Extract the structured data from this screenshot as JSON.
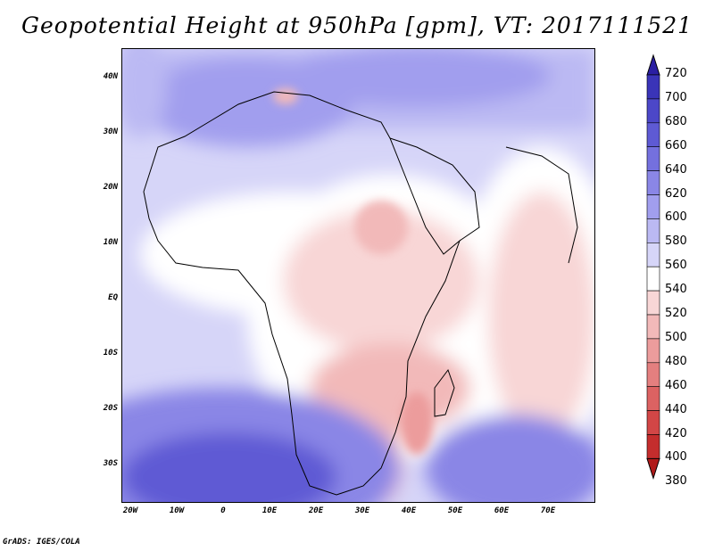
{
  "title": "Geopotential Height at 950hPa [gpm], VT: 2017111521",
  "y_axis_labels": [
    "40N",
    "30N",
    "20N",
    "10N",
    "EQ",
    "10S",
    "20S",
    "30S"
  ],
  "x_axis_labels": [
    "20W",
    "10W",
    "0",
    "10E",
    "20E",
    "30E",
    "40E",
    "50E",
    "60E",
    "70E"
  ],
  "colorbar": {
    "levels": [
      "720",
      "700",
      "680",
      "660",
      "640",
      "620",
      "600",
      "580",
      "560",
      "540",
      "520",
      "500",
      "480",
      "460",
      "440",
      "420",
      "400",
      "380"
    ],
    "colors": [
      "#2b1fa3",
      "#3a34b8",
      "#4c47c8",
      "#5e5ad4",
      "#7470de",
      "#8a86e6",
      "#a19eee",
      "#bbb9f3",
      "#d6d5f8",
      "#ffffff",
      "#f8d6d6",
      "#f2b9b9",
      "#ec9c9c",
      "#e47f7f",
      "#dc6262",
      "#d24646",
      "#c42d2d",
      "#b01a1a"
    ]
  },
  "credit": "GrADS: IGES/COLA"
}
